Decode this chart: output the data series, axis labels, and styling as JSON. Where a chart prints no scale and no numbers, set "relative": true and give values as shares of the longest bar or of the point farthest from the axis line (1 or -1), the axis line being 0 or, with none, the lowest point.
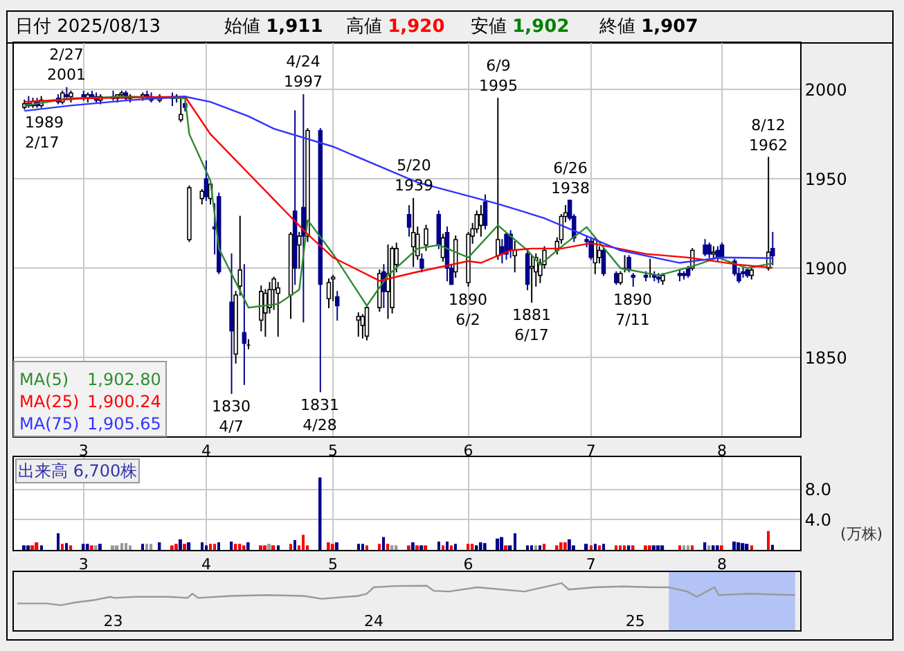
{
  "chart_data": [
    {
      "type": "candlestick",
      "title": "日付 2025/08/13",
      "annotations": [
        "始値 1,911",
        "高値 1,920",
        "安値 1,902",
        "終値 1,907",
        "1,902.80",
        "1,900.24",
        "1,905.65",
        {
          "text": "2/27\n2001",
          "x": "2025-02-27",
          "y": 2001
        },
        {
          "text": "1989\n2/17",
          "x": "2025-02-17",
          "y": 1989
        },
        {
          "text": "1830\n4/7",
          "x": "2025-04-07",
          "y": 1830
        },
        {
          "text": "4/24\n1997",
          "x": "2025-04-24",
          "y": 1997
        },
        {
          "text": "1831\n4/28",
          "x": "2025-04-28",
          "y": 1831
        },
        {
          "text": "5/20\n1939",
          "x": "2025-05-20",
          "y": 1939
        },
        {
          "text": "1890\n6/2",
          "x": "2025-06-02",
          "y": 1890
        },
        {
          "text": "6/9\n1995",
          "x": "2025-06-09",
          "y": 1995
        },
        {
          "text": "1881\n6/17",
          "x": "2025-06-17",
          "y": 1881
        },
        {
          "text": "6/26\n1938",
          "x": "2025-06-26",
          "y": 1938
        },
        {
          "text": "1890\n7/11",
          "x": "2025-07-11",
          "y": 1890
        },
        {
          "text": "8/12\n1962",
          "x": "2025-08-12",
          "y": 1962
        }
      ],
      "x": [
        "2025-02-17",
        "2025-02-18",
        "2025-02-19",
        "2025-02-20",
        "2025-02-21",
        "2025-02-25",
        "2025-02-26",
        "2025-02-27",
        "2025-02-28",
        "2025-03-03",
        "2025-03-04",
        "2025-03-05",
        "2025-03-06",
        "2025-03-07",
        "2025-03-10",
        "2025-03-11",
        "2025-03-12",
        "2025-03-13",
        "2025-03-14",
        "2025-03-17",
        "2025-03-18",
        "2025-03-19",
        "2025-03-21",
        "2025-03-24",
        "2025-03-25",
        "2025-03-26",
        "2025-03-27",
        "2025-03-28",
        "2025-03-31",
        "2025-04-01",
        "2025-04-02",
        "2025-04-03",
        "2025-04-04",
        "2025-04-07",
        "2025-04-08",
        "2025-04-09",
        "2025-04-10",
        "2025-04-11",
        "2025-04-14",
        "2025-04-15",
        "2025-04-16",
        "2025-04-17",
        "2025-04-18",
        "2025-04-21",
        "2025-04-22",
        "2025-04-23",
        "2025-04-24",
        "2025-04-25",
        "2025-04-28",
        "2025-04-30",
        "2025-05-01",
        "2025-05-02",
        "2025-05-07",
        "2025-05-08",
        "2025-05-09",
        "2025-05-12",
        "2025-05-13",
        "2025-05-14",
        "2025-05-15",
        "2025-05-16",
        "2025-05-19",
        "2025-05-20",
        "2025-05-21",
        "2025-05-22",
        "2025-05-23",
        "2025-05-26",
        "2025-05-27",
        "2025-05-28",
        "2025-05-29",
        "2025-05-30",
        "2025-06-02",
        "2025-06-03",
        "2025-06-04",
        "2025-06-05",
        "2025-06-06",
        "2025-06-09",
        "2025-06-10",
        "2025-06-11",
        "2025-06-12",
        "2025-06-13",
        "2025-06-16",
        "2025-06-17",
        "2025-06-18",
        "2025-06-19",
        "2025-06-20",
        "2025-06-23",
        "2025-06-24",
        "2025-06-25",
        "2025-06-26",
        "2025-06-27",
        "2025-06-30",
        "2025-07-01",
        "2025-07-02",
        "2025-07-03",
        "2025-07-04",
        "2025-07-07",
        "2025-07-08",
        "2025-07-09",
        "2025-07-10",
        "2025-07-11",
        "2025-07-14",
        "2025-07-15",
        "2025-07-16",
        "2025-07-17",
        "2025-07-18",
        "2025-07-22",
        "2025-07-23",
        "2025-07-24",
        "2025-07-25",
        "2025-07-28",
        "2025-07-29",
        "2025-07-30",
        "2025-07-31",
        "2025-08-01",
        "2025-08-04",
        "2025-08-05",
        "2025-08-06",
        "2025-08-07",
        "2025-08-08",
        "2025-08-12",
        "2025-08-13"
      ],
      "ohlc": [
        [
          1990,
          1994,
          1989,
          1992
        ],
        [
          1992,
          1996,
          1990,
          1991
        ],
        [
          1991,
          1995,
          1990,
          1993
        ],
        [
          1993,
          1995,
          1990,
          1991
        ],
        [
          1991,
          1996,
          1990,
          1994
        ],
        [
          1995,
          1997,
          1992,
          1993
        ],
        [
          1993,
          1999,
          1992,
          1998
        ],
        [
          1997,
          2001,
          1995,
          1996
        ],
        [
          1996,
          1999,
          1993,
          1998
        ],
        [
          1997,
          1999,
          1994,
          1995
        ],
        [
          1995,
          1998,
          1993,
          1997
        ],
        [
          1997,
          1999,
          1995,
          1996
        ],
        [
          1996,
          1998,
          1993,
          1994
        ],
        [
          1994,
          1997,
          1992,
          1996
        ],
        [
          1996,
          1999,
          1994,
          1995
        ],
        [
          1995,
          1997,
          1993,
          1997
        ],
        [
          1997,
          1999,
          1995,
          1998
        ],
        [
          1998,
          1999,
          1994,
          1995
        ],
        [
          1995,
          1997,
          1993,
          1996
        ],
        [
          1996,
          1998,
          1994,
          1997
        ],
        [
          1997,
          1999,
          1995,
          1996
        ],
        [
          1996,
          1998,
          1993,
          1994
        ],
        [
          1994,
          1997,
          1993,
          1996
        ],
        [
          1996,
          1998,
          1991,
          1995
        ],
        [
          1995,
          1997,
          1993,
          1996
        ],
        [
          1983,
          1995,
          1982,
          1986
        ],
        [
          1992,
          1993,
          1988,
          1990
        ],
        [
          1916,
          1946,
          1915,
          1945
        ],
        [
          1939,
          1944,
          1936,
          1943
        ],
        [
          1950,
          1960,
          1938,
          1940
        ],
        [
          1939,
          1949,
          1936,
          1947
        ],
        [
          1923,
          1936,
          1908,
          1922
        ],
        [
          1940,
          1942,
          1897,
          1898
        ],
        [
          1881,
          1908,
          1830,
          1865
        ],
        [
          1852,
          1887,
          1847,
          1885
        ],
        [
          1890,
          1929,
          1885,
          1899
        ],
        [
          1864,
          1902,
          1835,
          1858
        ],
        [
          1857,
          1860,
          1855,
          1857
        ],
        [
          1871,
          1890,
          1865,
          1887
        ],
        [
          1875,
          1888,
          1862,
          1886
        ],
        [
          1878,
          1892,
          1875,
          1888
        ],
        [
          1888,
          1895,
          1877,
          1894
        ],
        [
          1886,
          1892,
          1862,
          1889
        ],
        [
          1885,
          1920,
          1872,
          1919
        ],
        [
          1932,
          1988,
          1891,
          1900
        ],
        [
          1913,
          1920,
          1900,
          1918
        ],
        [
          1934,
          1997,
          1870,
          1918
        ],
        [
          1918,
          1978,
          1915,
          1977
        ],
        [
          1977,
          1978,
          1831,
          1891
        ],
        [
          1883,
          1894,
          1878,
          1892
        ],
        [
          1894,
          1896,
          1882,
          1895
        ],
        [
          1884,
          1887,
          1871,
          1879
        ],
        [
          1871,
          1875,
          1862,
          1873
        ],
        [
          1868,
          1874,
          1861,
          1873
        ],
        [
          1862,
          1879,
          1860,
          1878
        ],
        [
          1878,
          1899,
          1876,
          1897
        ],
        [
          1898,
          1902,
          1878,
          1887
        ],
        [
          1887,
          1913,
          1872,
          1897
        ],
        [
          1878,
          1912,
          1875,
          1911
        ],
        [
          1902,
          1914,
          1898,
          1911
        ],
        [
          1930,
          1935,
          1918,
          1923
        ],
        [
          1912,
          1939,
          1901,
          1920
        ],
        [
          1907,
          1923,
          1905,
          1919
        ],
        [
          1905,
          1908,
          1898,
          1900
        ],
        [
          1913,
          1924,
          1910,
          1922
        ],
        [
          1930,
          1932,
          1911,
          1913
        ],
        [
          1906,
          1919,
          1904,
          1917
        ],
        [
          1920,
          1923,
          1893,
          1900
        ],
        [
          1900,
          1902,
          1891,
          1891
        ],
        [
          1898,
          1918,
          1895,
          1916
        ],
        [
          1892,
          1920,
          1890,
          1919
        ],
        [
          1918,
          1925,
          1914,
          1922
        ],
        [
          1922,
          1932,
          1920,
          1930
        ],
        [
          1924,
          1935,
          1918,
          1930
        ],
        [
          1937,
          1941,
          1922,
          1924
        ],
        [
          1907,
          1995,
          1905,
          1916
        ],
        [
          1912,
          1916,
          1903,
          1908
        ],
        [
          1919,
          1920,
          1905,
          1908
        ],
        [
          1919,
          1921,
          1906,
          1910
        ],
        [
          1907,
          1915,
          1898,
          1910
        ],
        [
          1908,
          1910,
          1888,
          1891
        ],
        [
          1900,
          1907,
          1881,
          1901
        ],
        [
          1898,
          1908,
          1890,
          1906
        ],
        [
          1896,
          1905,
          1892,
          1903
        ],
        [
          1902,
          1912,
          1900,
          1910
        ],
        [
          1910,
          1917,
          1908,
          1915
        ],
        [
          1916,
          1930,
          1914,
          1929
        ],
        [
          1929,
          1935,
          1926,
          1931
        ],
        [
          1938,
          1938,
          1927,
          1928
        ],
        [
          1929,
          1930,
          1915,
          1917
        ],
        [
          1916,
          1918,
          1912,
          1915
        ],
        [
          1915,
          1917,
          1905,
          1906
        ],
        [
          1903,
          1917,
          1897,
          1916
        ],
        [
          1906,
          1912,
          1903,
          1910
        ],
        [
          1910,
          1911,
          1896,
          1897
        ],
        [
          1897,
          1898,
          1891,
          1892
        ],
        [
          1892,
          1898,
          1891,
          1897
        ],
        [
          1900,
          1907,
          1898,
          1900
        ],
        [
          1906,
          1907,
          1898,
          1899
        ],
        [
          1896,
          1897,
          1890,
          1895
        ],
        [
          1896,
          1898,
          1893,
          1895
        ],
        [
          1897,
          1905,
          1895,
          1897
        ],
        [
          1896,
          1898,
          1893,
          1895
        ],
        [
          1895,
          1897,
          1892,
          1894
        ],
        [
          1893,
          1897,
          1891,
          1896
        ],
        [
          1897,
          1899,
          1893,
          1896
        ],
        [
          1897,
          1898,
          1894,
          1896
        ],
        [
          1900,
          1901,
          1895,
          1896
        ],
        [
          1900,
          1911,
          1899,
          1910
        ],
        [
          1913,
          1916,
          1907,
          1908
        ],
        [
          1913,
          1914,
          1906,
          1908
        ],
        [
          1908,
          1912,
          1905,
          1909
        ],
        [
          1910,
          1912,
          1904,
          1906
        ],
        [
          1913,
          1914,
          1905,
          1906
        ],
        [
          1904,
          1905,
          1896,
          1897
        ],
        [
          1897,
          1900,
          1892,
          1893
        ],
        [
          1898,
          1900,
          1895,
          1897
        ],
        [
          1899,
          1900,
          1895,
          1896
        ],
        [
          1896,
          1900,
          1894,
          1899
        ],
        [
          1900,
          1962,
          1899,
          1909
        ],
        [
          1911,
          1920,
          1902,
          1907
        ]
      ],
      "series": [
        {
          "type": "line",
          "name": "MA(5)",
          "color": "#2e8b2e",
          "x": [
            "2025-02-17",
            "2025-02-28",
            "2025-03-14",
            "2025-03-27",
            "2025-03-28",
            "2025-04-02",
            "2025-04-04",
            "2025-04-11",
            "2025-04-18",
            "2025-04-23",
            "2025-04-25",
            "2025-05-01",
            "2025-05-09",
            "2025-05-14",
            "2025-05-21",
            "2025-05-26",
            "2025-06-02",
            "2025-06-09",
            "2025-06-16",
            "2025-06-19",
            "2025-06-24",
            "2025-06-30",
            "2025-07-08",
            "2025-07-17",
            "2025-07-25",
            "2025-07-31",
            "2025-08-07",
            "2025-08-13"
          ],
          "values": [
            1991,
            1995,
            1996,
            1995,
            1975,
            1949,
            1911,
            1878,
            1880,
            1888,
            1927,
            1908,
            1879,
            1896,
            1911,
            1913,
            1906,
            1924,
            1910,
            1902,
            1912,
            1923,
            1900,
            1896,
            1901,
            1906,
            1900,
            1902.8
          ]
        },
        {
          "type": "line",
          "name": "MA(25)",
          "color": "#ff0000",
          "x": [
            "2025-02-17",
            "2025-03-03",
            "2025-03-27",
            "2025-04-02",
            "2025-04-18",
            "2025-04-25",
            "2025-05-01",
            "2025-05-12",
            "2025-05-21",
            "2025-06-02",
            "2025-06-05",
            "2025-06-12",
            "2025-06-17",
            "2025-06-24",
            "2025-07-01",
            "2025-07-14",
            "2025-07-24",
            "2025-08-05",
            "2025-08-13"
          ],
          "values": [
            1993,
            1995,
            1996,
            1975,
            1936,
            1919,
            1906,
            1893,
            1898,
            1904,
            1903,
            1910,
            1911,
            1911,
            1914,
            1908,
            1906,
            1902,
            1900.24
          ]
        },
        {
          "type": "line",
          "name": "MA(75)",
          "color": "#3333ff",
          "x": [
            "2025-02-17",
            "2025-02-28",
            "2025-03-14",
            "2025-03-27",
            "2025-04-02",
            "2025-04-11",
            "2025-04-17",
            "2025-05-01",
            "2025-05-21",
            "2025-06-09",
            "2025-06-20",
            "2025-06-27",
            "2025-07-08",
            "2025-07-22",
            "2025-08-01",
            "2025-08-13"
          ],
          "values": [
            1988,
            1991,
            1994,
            1996,
            1993,
            1985,
            1978,
            1968,
            1948,
            1936,
            1928,
            1921,
            1910,
            1903,
            1906,
            1905.65
          ]
        }
      ],
      "xlim": [
        "2025-02-14T12:00",
        "2025-08-19T12:00"
      ],
      "xticks": [
        {
          "value": "2025-03-03",
          "label": "3"
        },
        {
          "value": "2025-04-01",
          "label": "4"
        },
        {
          "value": "2025-05-01",
          "label": "5"
        },
        {
          "value": "2025-06-02",
          "label": "6"
        },
        {
          "value": "2025-07-01",
          "label": "7"
        },
        {
          "value": "2025-08-01",
          "label": "8"
        }
      ],
      "ylim": [
        1806,
        2026
      ],
      "yticks": [
        1850,
        1900,
        1950,
        2000
      ],
      "grid": true,
      "legend": "bottom left"
    },
    {
      "type": "bar",
      "title": "出来高 6,700株",
      "ylabel": "(万株)",
      "x": [
        "2025-02-17",
        "2025-02-18",
        "2025-02-19",
        "2025-02-20",
        "2025-02-21",
        "2025-02-25",
        "2025-02-26",
        "2025-02-27",
        "2025-02-28",
        "2025-03-03",
        "2025-03-04",
        "2025-03-05",
        "2025-03-06",
        "2025-03-07",
        "2025-03-10",
        "2025-03-11",
        "2025-03-12",
        "2025-03-13",
        "2025-03-14",
        "2025-03-17",
        "2025-03-18",
        "2025-03-19",
        "2025-03-21",
        "2025-03-24",
        "2025-03-25",
        "2025-03-26",
        "2025-03-27",
        "2025-03-28",
        "2025-03-31",
        "2025-04-01",
        "2025-04-02",
        "2025-04-03",
        "2025-04-04",
        "2025-04-07",
        "2025-04-08",
        "2025-04-09",
        "2025-04-10",
        "2025-04-11",
        "2025-04-14",
        "2025-04-15",
        "2025-04-16",
        "2025-04-17",
        "2025-04-18",
        "2025-04-21",
        "2025-04-22",
        "2025-04-23",
        "2025-04-24",
        "2025-04-25",
        "2025-04-28",
        "2025-04-30",
        "2025-05-01",
        "2025-05-02",
        "2025-05-07",
        "2025-05-08",
        "2025-05-09",
        "2025-05-12",
        "2025-05-13",
        "2025-05-14",
        "2025-05-15",
        "2025-05-16",
        "2025-05-19",
        "2025-05-20",
        "2025-05-21",
        "2025-05-22",
        "2025-05-23",
        "2025-05-26",
        "2025-05-27",
        "2025-05-28",
        "2025-05-29",
        "2025-05-30",
        "2025-06-02",
        "2025-06-03",
        "2025-06-04",
        "2025-06-05",
        "2025-06-06",
        "2025-06-09",
        "2025-06-10",
        "2025-06-11",
        "2025-06-12",
        "2025-06-13",
        "2025-06-16",
        "2025-06-17",
        "2025-06-18",
        "2025-06-19",
        "2025-06-20",
        "2025-06-23",
        "2025-06-24",
        "2025-06-25",
        "2025-06-26",
        "2025-06-27",
        "2025-06-30",
        "2025-07-01",
        "2025-07-02",
        "2025-07-03",
        "2025-07-04",
        "2025-07-07",
        "2025-07-08",
        "2025-07-09",
        "2025-07-10",
        "2025-07-11",
        "2025-07-14",
        "2025-07-15",
        "2025-07-16",
        "2025-07-17",
        "2025-07-18",
        "2025-07-22",
        "2025-07-23",
        "2025-07-24",
        "2025-07-25",
        "2025-07-28",
        "2025-07-29",
        "2025-07-30",
        "2025-07-31",
        "2025-08-01",
        "2025-08-04",
        "2025-08-05",
        "2025-08-06",
        "2025-08-07",
        "2025-08-08",
        "2025-08-12",
        "2025-08-13"
      ],
      "values": [
        0.6,
        0.6,
        0.6,
        1.0,
        0.6,
        2.2,
        0.8,
        0.9,
        0.6,
        0.8,
        0.8,
        0.6,
        0.6,
        0.8,
        0.6,
        0.6,
        0.9,
        0.9,
        0.6,
        0.8,
        0.8,
        0.8,
        1.0,
        0.6,
        0.8,
        1.4,
        0.8,
        1.0,
        1.0,
        0.6,
        0.8,
        0.8,
        1.0,
        1.1,
        0.8,
        0.8,
        0.6,
        1.0,
        0.6,
        0.6,
        0.8,
        0.6,
        0.6,
        0.8,
        1.3,
        0.6,
        2.0,
        0.6,
        9.6,
        1.0,
        0.8,
        1.0,
        0.8,
        0.8,
        0.6,
        0.8,
        1.7,
        0.8,
        0.6,
        0.6,
        0.6,
        1.0,
        0.6,
        0.6,
        0.6,
        1.1,
        0.6,
        1.1,
        0.6,
        0.8,
        0.8,
        0.8,
        0.6,
        1.0,
        0.9,
        1.5,
        1.7,
        0.6,
        0.6,
        2.2,
        0.6,
        0.6,
        0.6,
        0.6,
        0.8,
        0.6,
        1.0,
        1.0,
        1.4,
        0.6,
        0.8,
        0.6,
        0.8,
        0.6,
        0.8,
        0.6,
        0.6,
        0.6,
        0.6,
        0.6,
        0.6,
        0.6,
        0.6,
        0.6,
        0.6,
        0.6,
        0.6,
        0.6,
        0.6,
        1.0,
        0.6,
        0.6,
        0.6,
        0.6,
        1.1,
        1.0,
        0.9,
        0.8,
        0.6,
        2.5,
        0.67
      ],
      "colors": [
        "#00008b",
        "#00008b",
        "#ff0000",
        "#ff0000",
        "#00008b",
        "#00008b",
        "#ff0000",
        "#00008b",
        "#ff0000",
        "#00008b",
        "#00008b",
        "#ff0000",
        "#999999",
        "#00008b",
        "#999999",
        "#999999",
        "#999999",
        "#999999",
        "#999999",
        "#00008b",
        "#999999",
        "#999999",
        "#00008b",
        "#ff0000",
        "#ff0000",
        "#00008b",
        "#ff0000",
        "#00008b",
        "#00008b",
        "#00008b",
        "#ff0000",
        "#ff0000",
        "#00008b",
        "#00008b",
        "#ff0000",
        "#ff0000",
        "#ff0000",
        "#00008b",
        "#ff0000",
        "#ff0000",
        "#999999",
        "#ff0000",
        "#00008b",
        "#ff0000",
        "#00008b",
        "#ff0000",
        "#ff0000",
        "#ff0000",
        "#00008b",
        "#ff0000",
        "#ff0000",
        "#00008b",
        "#00008b",
        "#00008b",
        "#ff0000",
        "#ff0000",
        "#00008b",
        "#ff0000",
        "#999999",
        "#999999",
        "#ff0000",
        "#00008b",
        "#ff0000",
        "#00008b",
        "#ff0000",
        "#00008b",
        "#ff0000",
        "#00008b",
        "#ff0000",
        "#00008b",
        "#ff0000",
        "#ff0000",
        "#00008b",
        "#00008b",
        "#00008b",
        "#00008b",
        "#00008b",
        "#ff0000",
        "#00008b",
        "#00008b",
        "#00008b",
        "#00008b",
        "#999999",
        "#00008b",
        "#ff0000",
        "#ff0000",
        "#ff0000",
        "#ff0000",
        "#00008b",
        "#00008b",
        "#00008b",
        "#ff0000",
        "#00008b",
        "#ff0000",
        "#00008b",
        "#ff0000",
        "#ff0000",
        "#ff0000",
        "#00008b",
        "#ff0000",
        "#ff0000",
        "#ff0000",
        "#00008b",
        "#00008b",
        "#00008b",
        "#ff0000",
        "#999999",
        "#999999",
        "#ff0000",
        "#00008b",
        "#999999",
        "#00008b",
        "#00008b",
        "#ff0000",
        "#00008b",
        "#00008b",
        "#00008b",
        "#00008b",
        "#ff0000",
        "#ff0000",
        "#00008b"
      ],
      "xlim": [
        "2025-02-14T12:00",
        "2025-08-19T12:00"
      ],
      "xticks": [
        {
          "value": "2025-03-03",
          "label": "3"
        },
        {
          "value": "2025-04-01",
          "label": "4"
        },
        {
          "value": "2025-05-01",
          "label": "5"
        },
        {
          "value": "2025-06-02",
          "label": "6"
        },
        {
          "value": "2025-07-01",
          "label": "7"
        },
        {
          "value": "2025-08-01",
          "label": "8"
        }
      ],
      "ylim": [
        0,
        12.3
      ],
      "yticks": [
        {
          "value": 4,
          "label": "4.0"
        },
        {
          "value": 8,
          "label": "8.0"
        }
      ],
      "grid": true
    },
    {
      "type": "line",
      "relative": true,
      "tick_labels": "x",
      "series": [
        {
          "color": "#999999",
          "x": [
            "2022-08-20",
            "2022-09-30",
            "2022-10-20",
            "2022-11-10",
            "2022-12-05",
            "2022-12-28",
            "2023-01-03",
            "2023-02-01",
            "2023-03-20",
            "2023-04-15",
            "2023-04-22",
            "2023-04-30",
            "2023-06-15",
            "2023-08-05",
            "2023-09-25",
            "2023-10-20",
            "2023-12-10",
            "2023-12-22",
            "2024-01-01",
            "2024-02-01",
            "2024-03-15",
            "2024-03-25",
            "2024-04-15",
            "2024-05-25",
            "2024-07-30",
            "2024-09-20",
            "2024-09-30",
            "2024-11-05",
            "2024-12-15",
            "2025-01-25",
            "2025-02-17",
            "2025-03-15",
            "2025-03-28",
            "2025-04-22",
            "2025-04-28",
            "2025-06-10",
            "2025-08-13"
          ],
          "values": [
            0.08,
            0.08,
            0,
            0.13,
            0.23,
            0.38,
            0.33,
            0.38,
            0.38,
            0.33,
            0.52,
            0.33,
            0.42,
            0.46,
            0.42,
            0.29,
            0.42,
            0.52,
            0.81,
            0.87,
            0.88,
            0.65,
            0.62,
            0.81,
            0.62,
            1,
            0.71,
            0.81,
            0.85,
            0.81,
            0.81,
            0.62,
            0.38,
            0.81,
            0.46,
            0.52,
            0.46
          ]
        }
      ],
      "xlim": [
        "2022-08-15",
        "2025-08-20"
      ],
      "xticks": [
        {
          "value": "2023-01-01",
          "label": "23"
        },
        {
          "value": "2024-01-01",
          "label": "24"
        },
        {
          "value": "2025-01-01",
          "label": "25"
        }
      ],
      "bands": [
        {
          "axis": "x",
          "from": "2025-02-17",
          "to": "2025-08-13",
          "color": "#b4c3f5"
        }
      ]
    }
  ]
}
